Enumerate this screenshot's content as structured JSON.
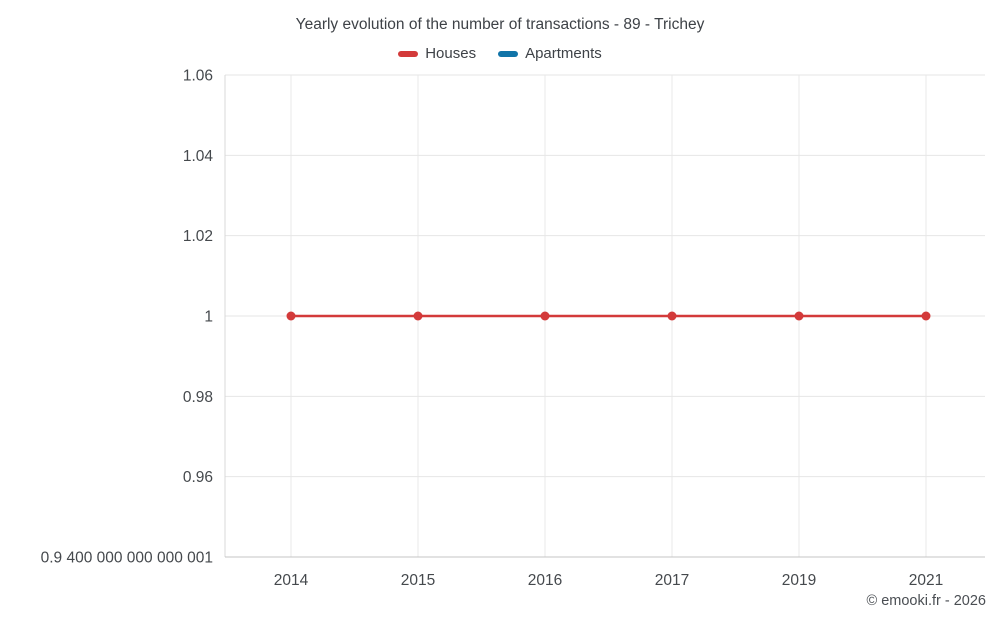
{
  "title": "Yearly evolution of the number of transactions - 89 - Trichey",
  "legend": [
    {
      "label": "Houses",
      "color": "#d33a3a"
    },
    {
      "label": "Apartments",
      "color": "#1174a8"
    }
  ],
  "footer": "© emooki.fr - 2026",
  "chart_data": {
    "type": "line",
    "title": "Yearly evolution of the number of transactions - 89 - Trichey",
    "xlabel": "",
    "ylabel": "",
    "grid": true,
    "legend_position": "top",
    "x_labels": [
      "2014",
      "2015",
      "2016",
      "2017",
      "2019",
      "2021"
    ],
    "series": [
      {
        "name": "Houses",
        "color": "#d33a3a",
        "values": [
          1,
          1,
          1,
          1,
          1,
          1
        ]
      },
      {
        "name": "Apartments",
        "color": "#1174a8",
        "values": []
      }
    ],
    "ylim": [
      0.94,
      1.06
    ],
    "y_ticks": [
      {
        "value": 1.06,
        "label": "1.06"
      },
      {
        "value": 1.04,
        "label": "1.04"
      },
      {
        "value": 1.02,
        "label": "1.02"
      },
      {
        "value": 1,
        "label": "1"
      },
      {
        "value": 0.98,
        "label": "0.98"
      },
      {
        "value": 0.96,
        "label": "0.96"
      },
      {
        "value": 0.94,
        "label": "0.9 400 000 000 000 001"
      }
    ]
  }
}
